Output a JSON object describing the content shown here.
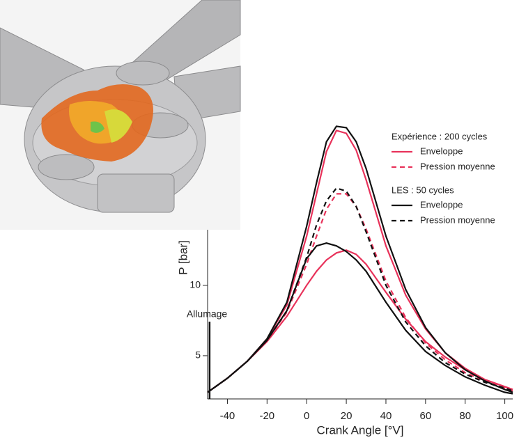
{
  "chart_data": {
    "type": "line",
    "x_label": "Crank Angle [°V]",
    "y_label": "P [bar]",
    "x": [
      -50,
      -40,
      -30,
      -20,
      -10,
      0,
      5,
      10,
      15,
      20,
      25,
      30,
      40,
      50,
      60,
      70,
      80,
      90,
      100,
      104
    ],
    "xlim": [
      -50,
      104
    ],
    "xticks": [
      -40,
      -20,
      0,
      20,
      40,
      60,
      80,
      100
    ],
    "ylim": [
      1.93,
      23
    ],
    "yticks": [
      5,
      10
    ],
    "legend_groups": [
      "Expérience : 200 cycles",
      "LES : 50 cycles"
    ],
    "series": [
      {
        "name": "Enveloppe",
        "group": 0,
        "color": "#e8325a",
        "dash": false,
        "values": [
          2.4,
          3.4,
          4.6,
          6.2,
          8.6,
          13.5,
          16.5,
          19.5,
          21.0,
          20.8,
          19.6,
          17.5,
          12.8,
          9.3,
          6.9,
          5.2,
          4.1,
          3.3,
          2.8,
          2.6
        ],
        "lower": [
          2.4,
          3.4,
          4.6,
          6.0,
          7.8,
          10.0,
          11.0,
          11.8,
          12.3,
          12.5,
          12.2,
          11.5,
          9.5,
          7.6,
          6.0,
          4.9,
          4.0,
          3.3,
          2.8,
          2.6
        ]
      },
      {
        "name": "Pression moyenne",
        "group": 0,
        "color": "#e8325a",
        "dash": true,
        "values": [
          2.4,
          3.4,
          4.6,
          6.1,
          8.1,
          11.5,
          13.5,
          15.4,
          16.5,
          16.5,
          15.6,
          14.0,
          10.3,
          7.7,
          5.9,
          4.7,
          3.8,
          3.2,
          2.7,
          2.5
        ]
      },
      {
        "name": "Enveloppe",
        "group": 1,
        "color": "#111111",
        "dash": false,
        "values": [
          2.4,
          3.4,
          4.6,
          6.2,
          8.8,
          14.2,
          17.3,
          20.2,
          21.3,
          21.2,
          20.2,
          18.3,
          13.5,
          9.7,
          7.0,
          5.2,
          4.0,
          3.2,
          2.6,
          2.4
        ],
        "lower": [
          2.4,
          3.4,
          4.6,
          6.1,
          8.2,
          11.9,
          12.8,
          13.0,
          12.8,
          12.4,
          11.8,
          11.0,
          8.8,
          6.8,
          5.3,
          4.3,
          3.5,
          2.9,
          2.4,
          2.3
        ]
      },
      {
        "name": "Pression moyenne",
        "group": 1,
        "color": "#111111",
        "dash": true,
        "values": [
          2.4,
          3.4,
          4.6,
          6.1,
          8.2,
          12.0,
          14.3,
          16.0,
          16.9,
          16.7,
          15.6,
          13.8,
          10.0,
          7.4,
          5.7,
          4.5,
          3.7,
          3.1,
          2.7,
          2.5
        ]
      }
    ],
    "annotations": [
      {
        "text": "Allumage",
        "x": -49
      }
    ]
  }
}
